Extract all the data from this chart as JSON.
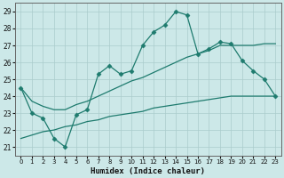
{
  "title": "",
  "xlabel": "Humidex (Indice chaleur)",
  "ylabel": "",
  "xlim": [
    -0.5,
    23.5
  ],
  "ylim": [
    20.5,
    29.5
  ],
  "xticks": [
    0,
    1,
    2,
    3,
    4,
    5,
    6,
    7,
    8,
    9,
    10,
    11,
    12,
    13,
    14,
    15,
    16,
    17,
    18,
    19,
    20,
    21,
    22,
    23
  ],
  "yticks": [
    21,
    22,
    23,
    24,
    25,
    26,
    27,
    28,
    29
  ],
  "bg_color": "#cce8e8",
  "grid_color": "#aacccc",
  "line_color": "#1e7b6e",
  "line_main": [
    24.5,
    23.0,
    22.7,
    21.5,
    21.0,
    22.9,
    23.2,
    25.3,
    25.8,
    25.3,
    25.5,
    27.0,
    27.8,
    28.2,
    29.0,
    28.8,
    26.5,
    26.8,
    27.2,
    27.1,
    26.1,
    25.5,
    25.0,
    24.0
  ],
  "line_upper": [
    24.5,
    23.7,
    23.4,
    23.2,
    23.2,
    23.5,
    23.7,
    24.0,
    24.3,
    24.6,
    24.9,
    25.1,
    25.4,
    25.7,
    26.0,
    26.3,
    26.5,
    26.7,
    27.0,
    27.0,
    27.0,
    27.0,
    27.1,
    27.1
  ],
  "line_lower": [
    21.5,
    21.7,
    21.9,
    22.0,
    22.2,
    22.3,
    22.5,
    22.6,
    22.8,
    22.9,
    23.0,
    23.1,
    23.3,
    23.4,
    23.5,
    23.6,
    23.7,
    23.8,
    23.9,
    24.0,
    24.0,
    24.0,
    24.0,
    24.0
  ],
  "marker": "D",
  "markersize": 2.5,
  "linewidth": 0.9,
  "tick_fontsize": 5.5,
  "xlabel_fontsize": 6.5
}
